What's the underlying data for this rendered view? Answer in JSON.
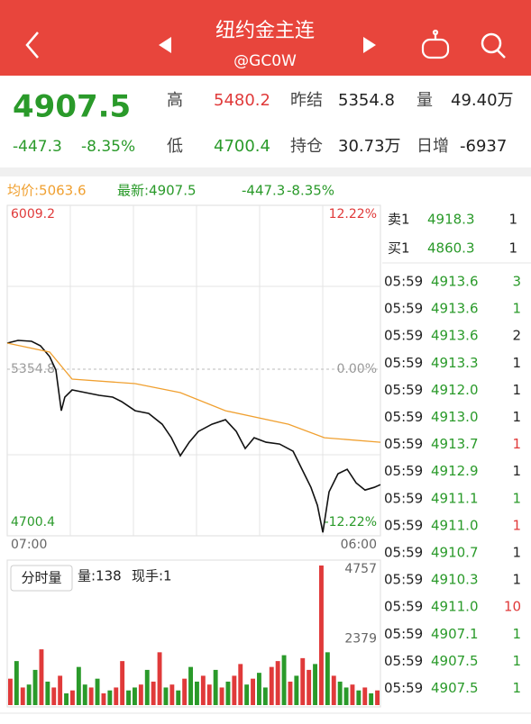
{
  "header": {
    "title": "纽约金主连",
    "subtitle": "@GC0W"
  },
  "quote": {
    "price": "4907.5",
    "change": "-447.3",
    "pct": "-8.35%",
    "fields": [
      {
        "label": "高",
        "value": "5480.2",
        "color": "#e03a3a"
      },
      {
        "label": "昨结",
        "value": "5354.8",
        "color": "#222"
      },
      {
        "label": "量",
        "value": "49.40万",
        "color": "#222"
      },
      {
        "label": "低",
        "value": "4700.4",
        "color": "#2a9a2a"
      },
      {
        "label": "持仓",
        "value": "30.73万",
        "color": "#222"
      },
      {
        "label": "日增",
        "value": "-6937",
        "color": "#222"
      }
    ]
  },
  "info": {
    "avg": "均价:5063.6",
    "latest": "最新:4907.5",
    "change": "-447.3",
    "pct": "-8.35%"
  },
  "price_chart": {
    "type": "line",
    "xlim": [
      0,
      1380
    ],
    "ylim": [
      4700.4,
      6009.2
    ],
    "yticks": [
      4700.4,
      5354.8,
      6009.2
    ],
    "y2lim": [
      -12.22,
      12.22
    ],
    "y2ticks": [
      {
        "value": -12.22,
        "label": "-12.22%"
      },
      {
        "value": 0,
        "label": "0.00%"
      },
      {
        "value": 12.22,
        "label": "12.22%"
      }
    ],
    "x_start": "07:00",
    "x_end": "06:00",
    "series": [
      {
        "color": "#111",
        "x": [
          0,
          40,
          90,
          123,
          157,
          180,
          200,
          213,
          240,
          290,
          340,
          390,
          423,
          473,
          523,
          573,
          607,
          640,
          673,
          707,
          757,
          807,
          847,
          880,
          913,
          957,
          1007,
          1057,
          1090,
          1123,
          1147,
          1167,
          1190,
          1223,
          1257,
          1290,
          1323,
          1357,
          1380
        ],
        "values": [
          5459.2,
          5470.0,
          5466.4,
          5448.4,
          5405.2,
          5351.2,
          5189.2,
          5243.2,
          5272.0,
          5261.2,
          5250.4,
          5243.2,
          5225.2,
          5189.2,
          5178.4,
          5135.2,
          5081.2,
          5009.2,
          5063.2,
          5106.4,
          5135.2,
          5153.2,
          5106.4,
          5038.0,
          5081.2,
          5063.2,
          5056.0,
          5027.2,
          4955.2,
          4883.2,
          4811.2,
          4703.2,
          4865.2,
          4937.2,
          4955.2,
          4901.2,
          4872.4,
          4883.2,
          4894.0
        ]
      },
      {
        "color": "#f0a030",
        "x": [
          0,
          157,
          240,
          473,
          640,
          807,
          1040,
          1173,
          1380
        ],
        "values": [
          5459.2,
          5423.2,
          5315.2,
          5297.2,
          5261.2,
          5189.2,
          5135.2,
          5081.2,
          5063.2
        ]
      }
    ]
  },
  "volume_chart": {
    "type": "bar",
    "label": "分时量",
    "vol": "量:138",
    "hand": "现手:1",
    "ylim": [
      0,
      4757
    ],
    "yticks": [
      2379,
      4757
    ],
    "up_color": "#e03a3a",
    "down_color": "#2a9a2a",
    "values": [
      900,
      1500,
      600,
      700,
      1200,
      1900,
      800,
      600,
      1000,
      400,
      500,
      1300,
      700,
      600,
      900,
      400,
      500,
      600,
      1500,
      500,
      600,
      700,
      1200,
      800,
      1800,
      600,
      700,
      500,
      900,
      1300,
      800,
      1000,
      700,
      1200,
      600,
      800,
      1000,
      1400,
      700,
      900,
      1100,
      600,
      1300,
      1500,
      1700,
      800,
      1000,
      1600,
      1200,
      1400,
      4757,
      1800,
      1000,
      800,
      600,
      700,
      500,
      600,
      400,
      500
    ],
    "up": [
      true,
      false,
      true,
      false,
      false,
      true,
      false,
      true,
      true,
      false,
      true,
      false,
      false,
      true,
      false,
      true,
      false,
      true,
      true,
      false,
      false,
      true,
      false,
      true,
      true,
      false,
      true,
      false,
      true,
      false,
      false,
      true,
      true,
      false,
      true,
      false,
      true,
      true,
      false,
      true,
      false,
      false,
      true,
      true,
      false,
      true,
      false,
      true,
      true,
      false,
      true,
      false,
      true,
      false,
      false,
      true,
      false,
      true,
      false,
      true
    ]
  },
  "book": [
    {
      "side": "卖1",
      "price": "4918.3",
      "qty": "1"
    },
    {
      "side": "买1",
      "price": "4860.3",
      "qty": "1"
    }
  ],
  "trades": [
    {
      "time": "05:59",
      "price": "4913.6",
      "qty": "3",
      "color": "#2a9a2a"
    },
    {
      "time": "05:59",
      "price": "4913.6",
      "qty": "1",
      "color": "#2a9a2a"
    },
    {
      "time": "05:59",
      "price": "4913.6",
      "qty": "2",
      "color": "#222"
    },
    {
      "time": "05:59",
      "price": "4913.3",
      "qty": "1",
      "color": "#222"
    },
    {
      "time": "05:59",
      "price": "4912.0",
      "qty": "1",
      "color": "#222"
    },
    {
      "time": "05:59",
      "price": "4913.0",
      "qty": "1",
      "color": "#222"
    },
    {
      "time": "05:59",
      "price": "4913.7",
      "qty": "1",
      "color": "#e03a3a"
    },
    {
      "time": "05:59",
      "price": "4912.9",
      "qty": "1",
      "color": "#222"
    },
    {
      "time": "05:59",
      "price": "4911.1",
      "qty": "1",
      "color": "#2a9a2a"
    },
    {
      "time": "05:59",
      "price": "4911.0",
      "qty": "1",
      "color": "#e03a3a"
    },
    {
      "time": "05:59",
      "price": "4910.7",
      "qty": "1",
      "color": "#222"
    },
    {
      "time": "05:59",
      "price": "4910.3",
      "qty": "1",
      "color": "#222"
    },
    {
      "time": "05:59",
      "price": "4911.0",
      "qty": "10",
      "color": "#e03a3a"
    },
    {
      "time": "05:59",
      "price": "4907.1",
      "qty": "1",
      "color": "#2a9a2a"
    },
    {
      "time": "05:59",
      "price": "4907.5",
      "qty": "1",
      "color": "#2a9a2a"
    },
    {
      "time": "05:59",
      "price": "4907.5",
      "qty": "1",
      "color": "#2a9a2a"
    }
  ]
}
